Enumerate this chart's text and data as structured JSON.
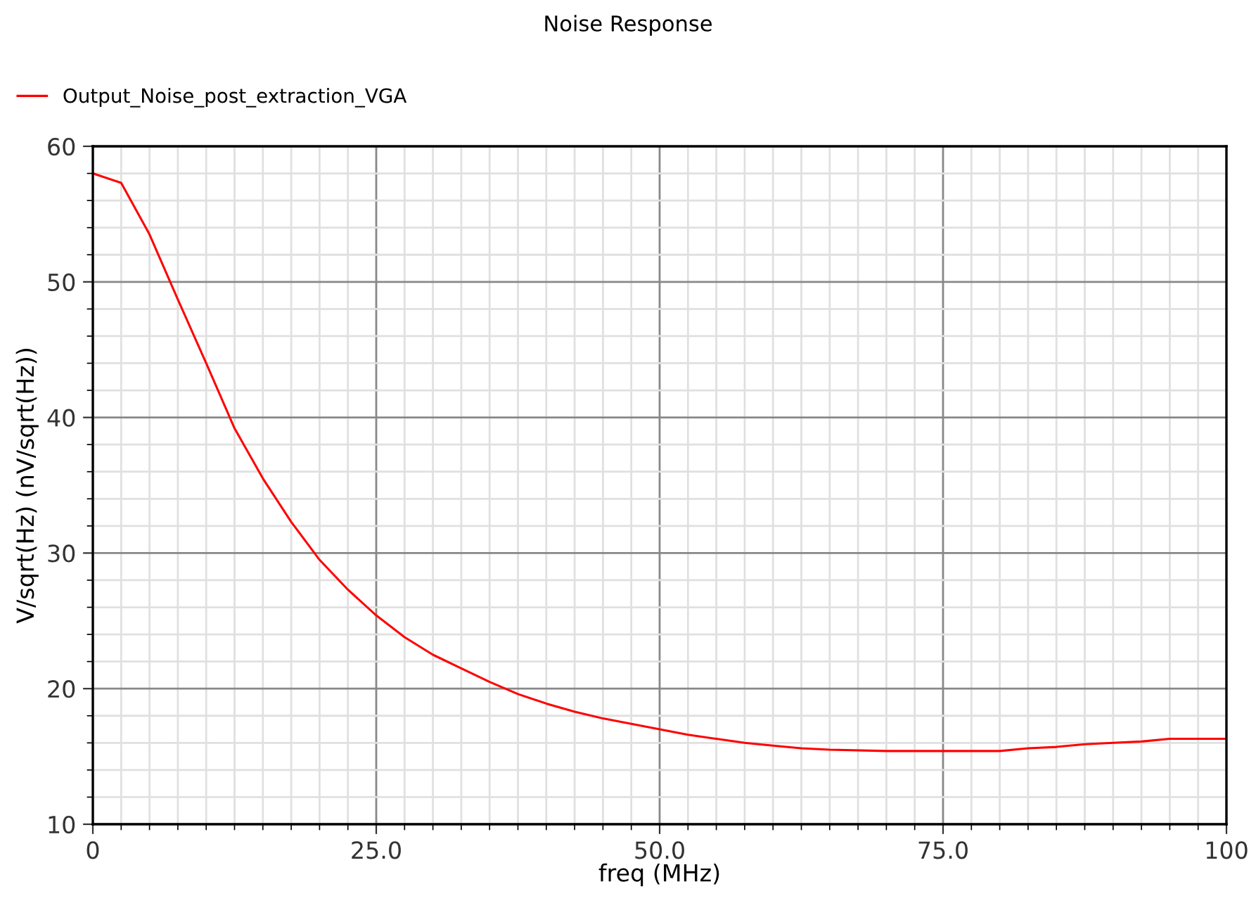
{
  "chart_data": {
    "type": "line",
    "title": "Noise Response",
    "xlabel": "freq (MHz)",
    "ylabel": "V/sqrt(Hz) (nV/sqrt(Hz))",
    "x": [
      0,
      2.5,
      5,
      7.5,
      10,
      12.5,
      15,
      17.5,
      20,
      22.5,
      25,
      27.5,
      30,
      32.5,
      35,
      37.5,
      40,
      42.5,
      45,
      47.5,
      50,
      52.5,
      55,
      57.5,
      60,
      62.5,
      65,
      70,
      75,
      80,
      82.5,
      85,
      87.5,
      90,
      92.5,
      95,
      100
    ],
    "series": [
      {
        "name": "Output_Noise_post_extraction_VGA",
        "color": "#ff0000",
        "values": [
          58.0,
          57.3,
          53.5,
          48.7,
          44.0,
          39.2,
          35.5,
          32.3,
          29.5,
          27.3,
          25.4,
          23.8,
          22.5,
          21.5,
          20.5,
          19.6,
          18.9,
          18.3,
          17.8,
          17.4,
          17.0,
          16.6,
          16.3,
          16.0,
          15.8,
          15.6,
          15.5,
          15.4,
          15.4,
          15.4,
          15.6,
          15.7,
          15.9,
          16.0,
          16.1,
          16.3,
          16.3
        ]
      }
    ],
    "xlim": [
      0,
      100
    ],
    "xticks": [
      0,
      {
        "value": 25,
        "label": "25.0"
      },
      {
        "value": 50,
        "label": "50.0"
      },
      {
        "value": 75,
        "label": "75.0"
      },
      100
    ],
    "ylim": [
      10,
      60
    ],
    "yticks": [
      10,
      20,
      30,
      40,
      50,
      60
    ],
    "grid": true,
    "legend": "top left",
    "marker": "none",
    "line_style": "solid"
  }
}
